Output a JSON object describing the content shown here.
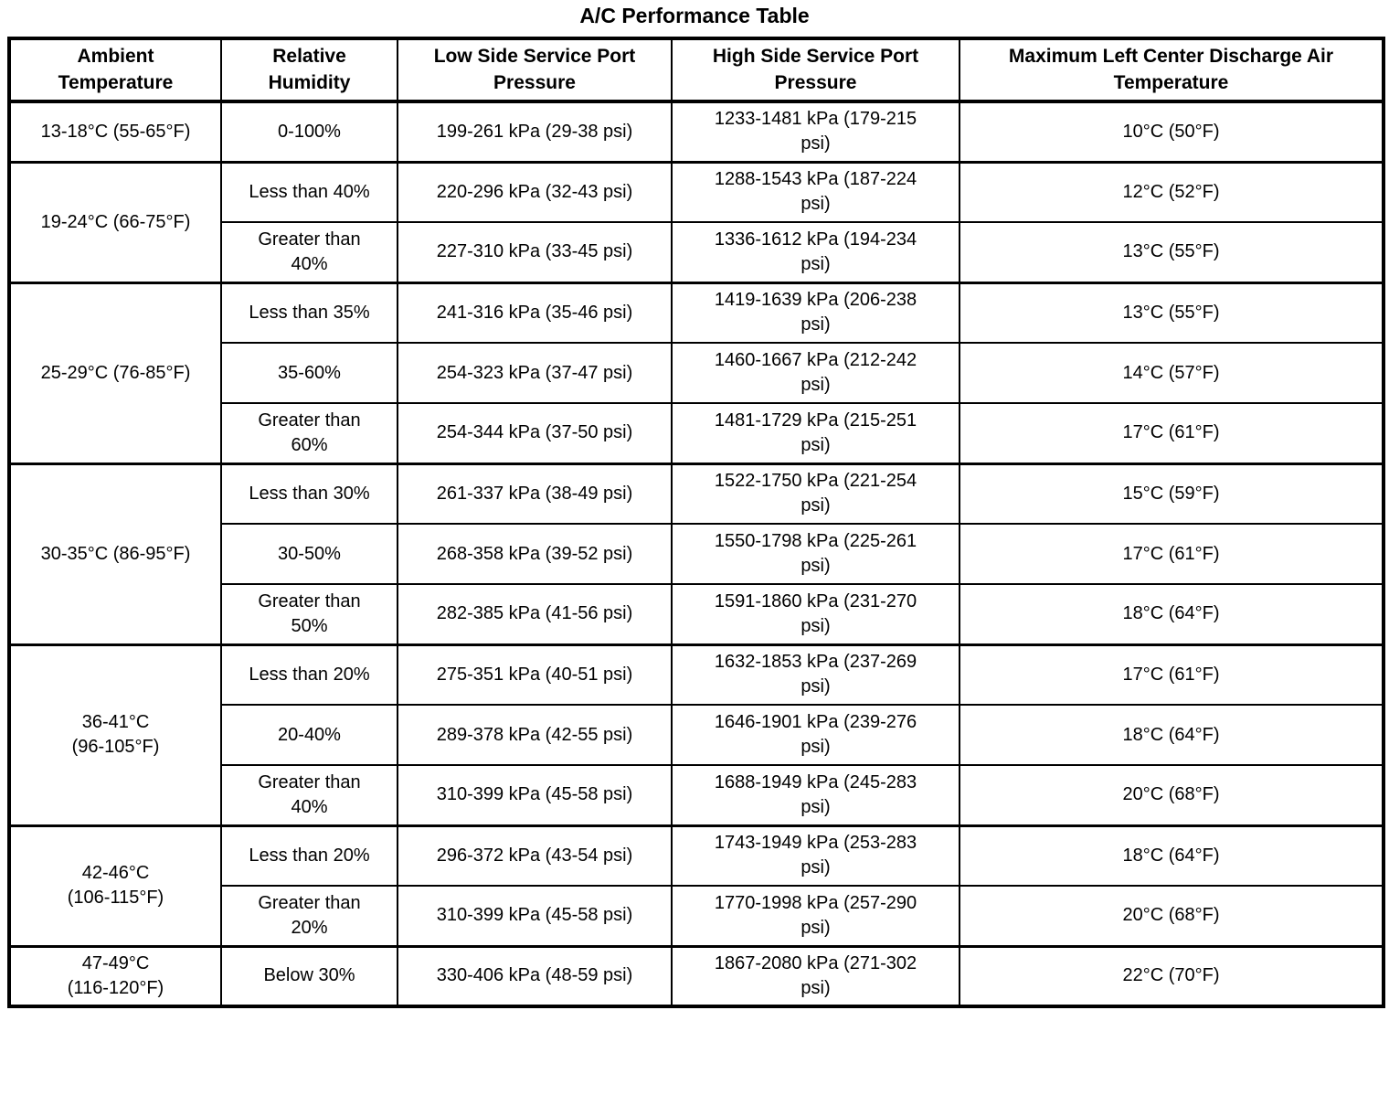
{
  "title": "A/C Performance Table",
  "colors": {
    "border": "#000000",
    "text": "#000000",
    "background": "#ffffff"
  },
  "table": {
    "columns": [
      "Ambient\nTemperature",
      "Relative\nHumidity",
      "Low Side Service Port\nPressure",
      "High Side Service Port\nPressure",
      "Maximum Left Center Discharge Air\nTemperature"
    ],
    "groups": [
      {
        "ambient": "13-18°C (55-65°F)",
        "rows": [
          {
            "humidity": "0-100%",
            "low_side": "199-261 kPa (29-38 psi)",
            "high_side": "1233-1481 kPa (179-215\npsi)",
            "discharge": "10°C (50°F)"
          }
        ]
      },
      {
        "ambient": "19-24°C (66-75°F)",
        "rows": [
          {
            "humidity": "Less than 40%",
            "low_side": "220-296 kPa (32-43 psi)",
            "high_side": "1288-1543 kPa (187-224\npsi)",
            "discharge": "12°C (52°F)"
          },
          {
            "humidity": "Greater than\n40%",
            "low_side": "227-310 kPa (33-45 psi)",
            "high_side": "1336-1612 kPa (194-234\npsi)",
            "discharge": "13°C (55°F)"
          }
        ]
      },
      {
        "ambient": "25-29°C (76-85°F)",
        "rows": [
          {
            "humidity": "Less than 35%",
            "low_side": "241-316 kPa (35-46 psi)",
            "high_side": "1419-1639 kPa (206-238\npsi)",
            "discharge": "13°C (55°F)"
          },
          {
            "humidity": "35-60%",
            "low_side": "254-323 kPa (37-47 psi)",
            "high_side": "1460-1667 kPa (212-242\npsi)",
            "discharge": "14°C (57°F)"
          },
          {
            "humidity": "Greater than\n60%",
            "low_side": "254-344 kPa (37-50 psi)",
            "high_side": "1481-1729 kPa (215-251\npsi)",
            "discharge": "17°C (61°F)"
          }
        ]
      },
      {
        "ambient": "30-35°C (86-95°F)",
        "rows": [
          {
            "humidity": "Less than 30%",
            "low_side": "261-337 kPa (38-49 psi)",
            "high_side": "1522-1750 kPa (221-254\npsi)",
            "discharge": "15°C (59°F)"
          },
          {
            "humidity": "30-50%",
            "low_side": "268-358 kPa (39-52 psi)",
            "high_side": "1550-1798 kPa (225-261\npsi)",
            "discharge": "17°C (61°F)"
          },
          {
            "humidity": "Greater than\n50%",
            "low_side": "282-385 kPa (41-56 psi)",
            "high_side": "1591-1860 kPa (231-270\npsi)",
            "discharge": "18°C (64°F)"
          }
        ]
      },
      {
        "ambient": "36-41°C\n(96-105°F)",
        "rows": [
          {
            "humidity": "Less than 20%",
            "low_side": "275-351 kPa (40-51 psi)",
            "high_side": "1632-1853 kPa (237-269\npsi)",
            "discharge": "17°C (61°F)"
          },
          {
            "humidity": "20-40%",
            "low_side": "289-378 kPa (42-55 psi)",
            "high_side": "1646-1901 kPa (239-276\npsi)",
            "discharge": "18°C (64°F)"
          },
          {
            "humidity": "Greater than\n40%",
            "low_side": "310-399 kPa (45-58 psi)",
            "high_side": "1688-1949 kPa (245-283\npsi)",
            "discharge": "20°C (68°F)"
          }
        ]
      },
      {
        "ambient": "42-46°C\n(106-115°F)",
        "rows": [
          {
            "humidity": "Less than 20%",
            "low_side": "296-372 kPa (43-54 psi)",
            "high_side": "1743-1949 kPa (253-283\npsi)",
            "discharge": "18°C (64°F)"
          },
          {
            "humidity": "Greater than\n20%",
            "low_side": "310-399 kPa (45-58 psi)",
            "high_side": "1770-1998 kPa (257-290\npsi)",
            "discharge": "20°C (68°F)"
          }
        ]
      },
      {
        "ambient": "47-49°C\n(116-120°F)",
        "rows": [
          {
            "humidity": "Below 30%",
            "low_side": "330-406 kPa (48-59 psi)",
            "high_side": "1867-2080 kPa (271-302\npsi)",
            "discharge": "22°C (70°F)"
          }
        ]
      }
    ]
  }
}
